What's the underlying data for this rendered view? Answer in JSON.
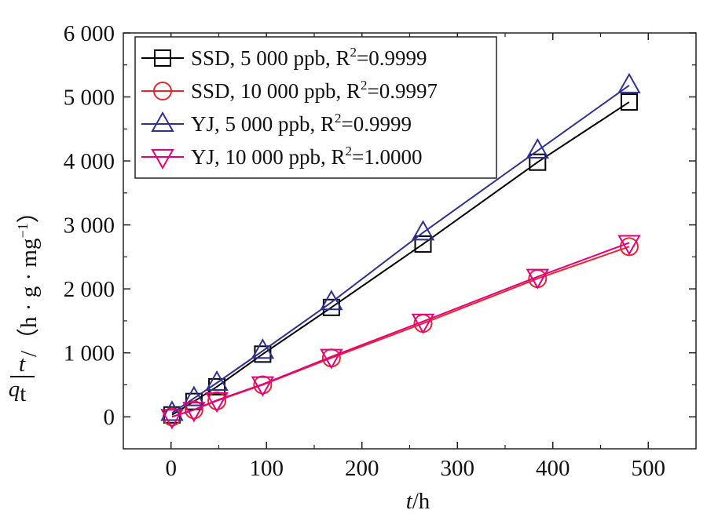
{
  "chart_data": {
    "type": "line",
    "xlabel": {
      "var": "t",
      "rest": "/h"
    },
    "ylabel": {
      "num": "t",
      "den": "q",
      "den_sub": "t",
      "unit_open": "/（h · g · mg",
      "unit_exp": "−1",
      "unit_close": "）"
    },
    "xlim": [
      -50,
      550
    ],
    "ylim": [
      -500,
      6000
    ],
    "xticks": [
      0,
      100,
      200,
      300,
      400,
      500
    ],
    "xtick_labels": [
      "0",
      "100",
      "200",
      "300",
      "400",
      "500"
    ],
    "yticks": [
      0,
      1000,
      2000,
      3000,
      4000,
      5000,
      6000
    ],
    "ytick_labels": [
      "0",
      "1 000",
      "2 000",
      "3 000",
      "4 000",
      "5 000",
      "6 000"
    ],
    "grid": false,
    "legend_position": "top-left",
    "x": [
      1,
      24,
      48,
      96,
      168,
      264,
      384,
      480
    ],
    "series": [
      {
        "name": "SSD, 5 000 ppb, R",
        "name_sup": "2",
        "name_tail": "=0.9999",
        "marker": "square",
        "color": "#000000",
        "values": [
          30,
          240,
          470,
          980,
          1710,
          2700,
          3980,
          4920
        ]
      },
      {
        "name": "SSD, 10 000 ppb, R",
        "name_sup": "2",
        "name_tail": "=0.9997",
        "marker": "circle",
        "color": "#e8262d",
        "values": [
          0,
          110,
          250,
          500,
          920,
          1460,
          2160,
          2660
        ]
      },
      {
        "name": "YJ, 5 000 ppb, R",
        "name_sup": "2",
        "name_tail": "=0.9999",
        "marker": "triangle-up",
        "color": "#2e3192",
        "values": [
          60,
          290,
          530,
          1030,
          1790,
          2880,
          4160,
          5180
        ]
      },
      {
        "name": "YJ, 10 000 ppb, R",
        "name_sup": "2",
        "name_tail": "=1.0000",
        "marker": "triangle-down",
        "color": "#e6007e",
        "values": [
          0,
          110,
          260,
          510,
          940,
          1490,
          2190,
          2720
        ]
      }
    ]
  }
}
